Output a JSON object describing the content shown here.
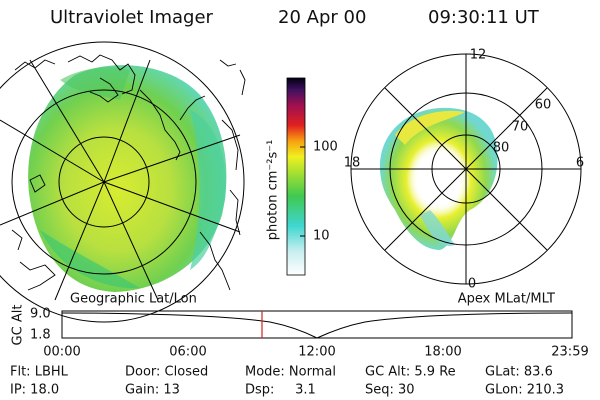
{
  "header": {
    "title": "Ultraviolet Imager",
    "date": "20 Apr 00",
    "time": "09:30:11 UT"
  },
  "colorbar": {
    "label": "photon cm⁻²s⁻¹",
    "ticks": [
      "100",
      "10"
    ]
  },
  "polar_plot": {
    "mlt_labels": {
      "top": "12",
      "left": "18",
      "right": "6",
      "bottom": "0"
    },
    "lat_labels": [
      "60",
      "70",
      "80"
    ]
  },
  "panel_labels": {
    "left": "Geographic Lat/Lon",
    "right": "Apex MLat/MLT"
  },
  "timeline": {
    "axis_label": "GC Alt",
    "y_labels": [
      "9.0",
      "1.8"
    ],
    "time_labels": [
      "00:00",
      "06:00",
      "12:00",
      "18:00",
      "23:59"
    ]
  },
  "footer": {
    "rows": [
      [
        "Flt: LBHL",
        "Door: Closed",
        "Mode: Normal",
        "GC Alt: 5.9 Re",
        "GLat: 83.6"
      ],
      [
        "IP: 18.0",
        "Gain: 13",
        "Dsp:     3.1",
        "Seq: 30",
        "GLon: 210.3"
      ]
    ]
  }
}
